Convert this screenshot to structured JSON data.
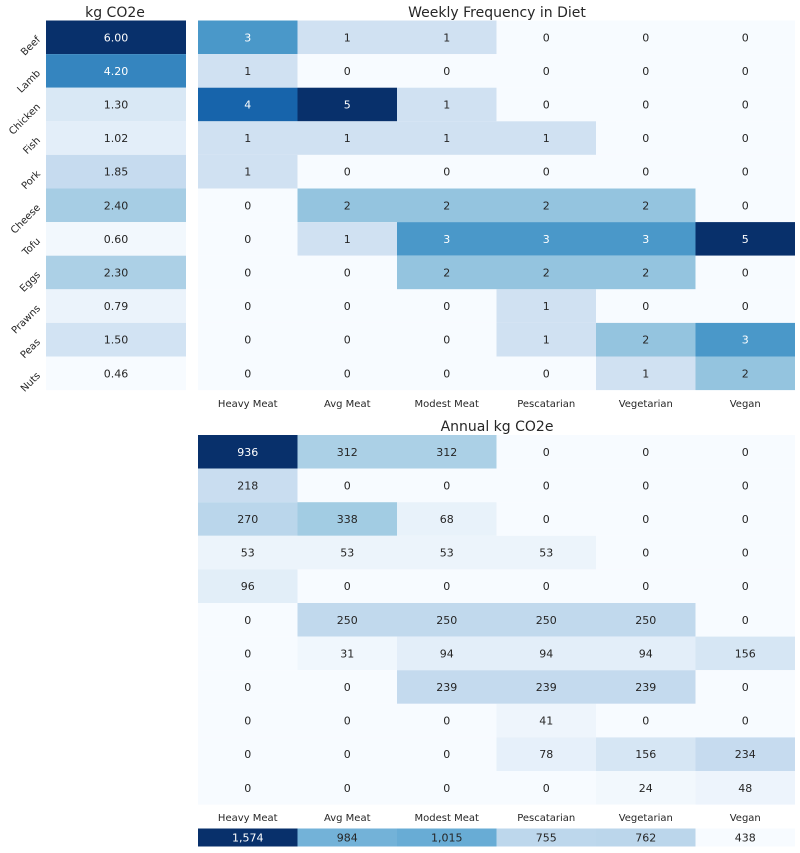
{
  "theme": {
    "palette": "Blues",
    "light_color": "#f7fbff",
    "dark_color": "#08306b",
    "text_dark": "#262626",
    "text_light": "#ffffff"
  },
  "chart_data": [
    {
      "type": "heatmap",
      "title": "kg CO2e",
      "rows": [
        "Beef",
        "Lamb",
        "Chicken",
        "Fish",
        "Pork",
        "Cheese",
        "Tofu",
        "Eggs",
        "Prawns",
        "Peas",
        "Nuts"
      ],
      "columns": [],
      "values": [
        [
          6.0
        ],
        [
          4.2
        ],
        [
          1.3
        ],
        [
          1.02
        ],
        [
          1.85
        ],
        [
          2.4
        ],
        [
          0.6
        ],
        [
          2.3
        ],
        [
          0.79
        ],
        [
          1.5
        ],
        [
          0.46
        ]
      ],
      "labels": [
        [
          "6.00"
        ],
        [
          "4.20"
        ],
        [
          "1.30"
        ],
        [
          "1.02"
        ],
        [
          "1.85"
        ],
        [
          "2.40"
        ],
        [
          "0.60"
        ],
        [
          "2.30"
        ],
        [
          "0.79"
        ],
        [
          "1.50"
        ],
        [
          "0.46"
        ]
      ],
      "vmin": 0.46,
      "vmax": 6.0
    },
    {
      "type": "heatmap",
      "title": "Weekly Frequency in Diet",
      "rows": [
        "Beef",
        "Lamb",
        "Chicken",
        "Fish",
        "Pork",
        "Cheese",
        "Tofu",
        "Eggs",
        "Prawns",
        "Peas",
        "Nuts"
      ],
      "columns": [
        "Heavy Meat",
        "Avg Meat",
        "Modest Meat",
        "Pescatarian",
        "Vegetarian",
        "Vegan"
      ],
      "values": [
        [
          3,
          1,
          1,
          0,
          0,
          0
        ],
        [
          1,
          0,
          0,
          0,
          0,
          0
        ],
        [
          4,
          5,
          1,
          0,
          0,
          0
        ],
        [
          1,
          1,
          1,
          1,
          0,
          0
        ],
        [
          1,
          0,
          0,
          0,
          0,
          0
        ],
        [
          0,
          2,
          2,
          2,
          2,
          0
        ],
        [
          0,
          1,
          3,
          3,
          3,
          5
        ],
        [
          0,
          0,
          2,
          2,
          2,
          0
        ],
        [
          0,
          0,
          0,
          1,
          0,
          0
        ],
        [
          0,
          0,
          0,
          1,
          2,
          3
        ],
        [
          0,
          0,
          0,
          0,
          1,
          2
        ]
      ],
      "vmin": 0,
      "vmax": 5
    },
    {
      "type": "heatmap",
      "title": "Annual kg CO2e",
      "rows": [
        "Beef",
        "Lamb",
        "Chicken",
        "Fish",
        "Pork",
        "Cheese",
        "Tofu",
        "Eggs",
        "Prawns",
        "Peas",
        "Nuts"
      ],
      "columns": [
        "Heavy Meat",
        "Avg Meat",
        "Modest Meat",
        "Pescatarian",
        "Vegetarian",
        "Vegan"
      ],
      "values": [
        [
          936,
          312,
          312,
          0,
          0,
          0
        ],
        [
          218,
          0,
          0,
          0,
          0,
          0
        ],
        [
          270,
          338,
          68,
          0,
          0,
          0
        ],
        [
          53,
          53,
          53,
          53,
          0,
          0
        ],
        [
          96,
          0,
          0,
          0,
          0,
          0
        ],
        [
          0,
          250,
          250,
          250,
          250,
          0
        ],
        [
          0,
          31,
          94,
          94,
          94,
          156
        ],
        [
          0,
          0,
          239,
          239,
          239,
          0
        ],
        [
          0,
          0,
          0,
          41,
          0,
          0
        ],
        [
          0,
          0,
          0,
          78,
          156,
          234
        ],
        [
          0,
          0,
          0,
          0,
          24,
          48
        ]
      ],
      "vmin": 0,
      "vmax": 936
    },
    {
      "type": "heatmap",
      "title": "",
      "rows": [],
      "columns": [
        "Heavy Meat",
        "Avg Meat",
        "Modest Meat",
        "Pescatarian",
        "Vegetarian",
        "Vegan"
      ],
      "values": [
        [
          1574,
          984,
          1015,
          755,
          762,
          438
        ]
      ],
      "labels": [
        [
          "1,574",
          "984",
          "1,015",
          "755",
          "762",
          "438"
        ]
      ],
      "vmin": 438,
      "vmax": 1574
    }
  ]
}
